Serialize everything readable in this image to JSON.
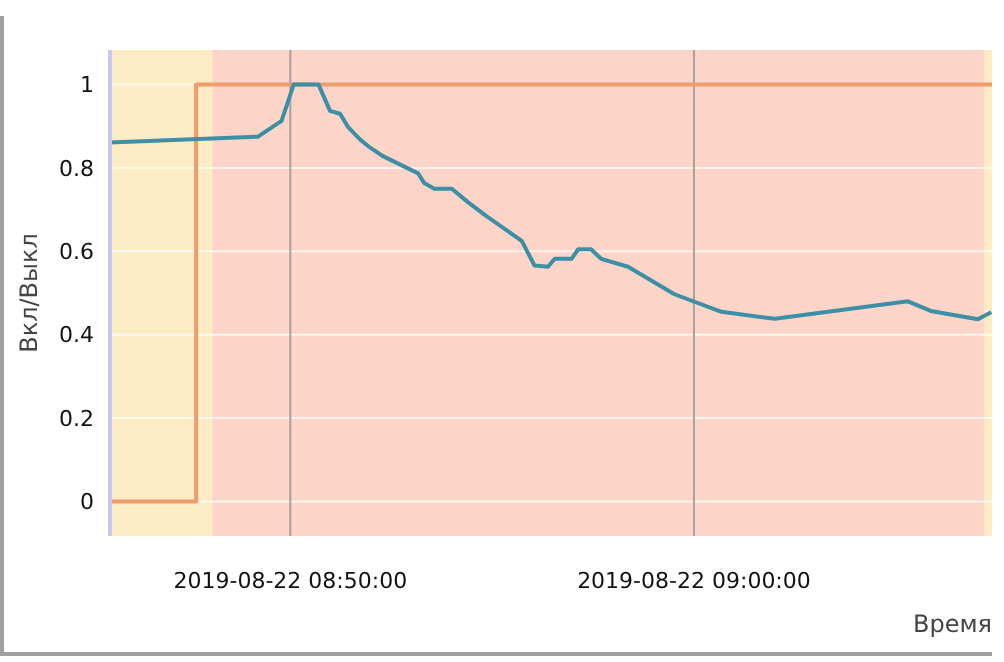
{
  "chart_data": {
    "type": "line",
    "xlabel": "Время",
    "ylabel": "Вкл/Выкл",
    "xlim": [
      "2019-08-22T08:45:32",
      "2019-08-22T09:07:23"
    ],
    "xticks": [
      {
        "value": "2019-08-22T08:50:00",
        "label": "2019-08-22 08:50:00"
      },
      {
        "value": "2019-08-22T09:00:00",
        "label": "2019-08-22 09:00:00"
      }
    ],
    "ylim": [
      -0.083,
      1.083
    ],
    "yticks": [
      0,
      0.2,
      0.4,
      0.6,
      0.8,
      1
    ],
    "grid": true,
    "marker": "none",
    "line_style": "solid",
    "bands": [
      {
        "axis": "x",
        "from": "2019-08-22T08:45:32",
        "to": "2019-08-22T08:48:04",
        "color": "#fdebc3"
      },
      {
        "axis": "x",
        "from": "2019-08-22T08:48:04",
        "to": "2019-08-22T09:07:11",
        "color": "#fdd5c8"
      },
      {
        "axis": "x",
        "from": "2019-08-22T09:07:11",
        "to": "2019-08-22T09:07:23",
        "color": "#fdebc3"
      }
    ],
    "series": [
      {
        "type": "step",
        "color": "#ec9e6e",
        "x": [
          "2019-08-22T08:45:32",
          "2019-08-22T08:47:40",
          "2019-08-22T09:07:23"
        ],
        "values": [
          0,
          1,
          1
        ]
      },
      {
        "type": "line",
        "color": "#3d8fa5",
        "x": [
          "2019-08-22T08:45:32",
          "2019-08-22T08:49:12",
          "2019-08-22T08:49:47",
          "2019-08-22T08:50:05",
          "2019-08-22T08:50:42",
          "2019-08-22T08:50:59",
          "2019-08-22T08:51:14",
          "2019-08-22T08:51:26",
          "2019-08-22T08:51:44",
          "2019-08-22T08:51:56",
          "2019-08-22T08:52:17",
          "2019-08-22T08:53:10",
          "2019-08-22T08:53:19",
          "2019-08-22T08:53:34",
          "2019-08-22T08:54:00",
          "2019-08-22T08:54:24",
          "2019-08-22T08:54:51",
          "2019-08-22T08:55:44",
          "2019-08-22T08:56:03",
          "2019-08-22T08:56:23",
          "2019-08-22T08:56:33",
          "2019-08-22T08:56:58",
          "2019-08-22T08:57:08",
          "2019-08-22T08:57:27",
          "2019-08-22T08:57:42",
          "2019-08-22T08:58:22",
          "2019-08-22T08:59:31",
          "2019-08-22T09:00:41",
          "2019-08-22T09:02:00",
          "2019-08-22T09:05:18",
          "2019-08-22T09:05:52",
          "2019-08-22T09:07:02",
          "2019-08-22T09:07:22"
        ],
        "values": [
          0.861,
          0.875,
          0.913,
          1,
          1,
          0.937,
          0.93,
          0.898,
          0.868,
          0.852,
          0.829,
          0.787,
          0.764,
          0.75,
          0.75,
          0.718,
          0.685,
          0.625,
          0.566,
          0.563,
          0.582,
          0.582,
          0.605,
          0.605,
          0.582,
          0.563,
          0.497,
          0.455,
          0.438,
          0.48,
          0.457,
          0.437,
          0.454
        ]
      }
    ]
  }
}
